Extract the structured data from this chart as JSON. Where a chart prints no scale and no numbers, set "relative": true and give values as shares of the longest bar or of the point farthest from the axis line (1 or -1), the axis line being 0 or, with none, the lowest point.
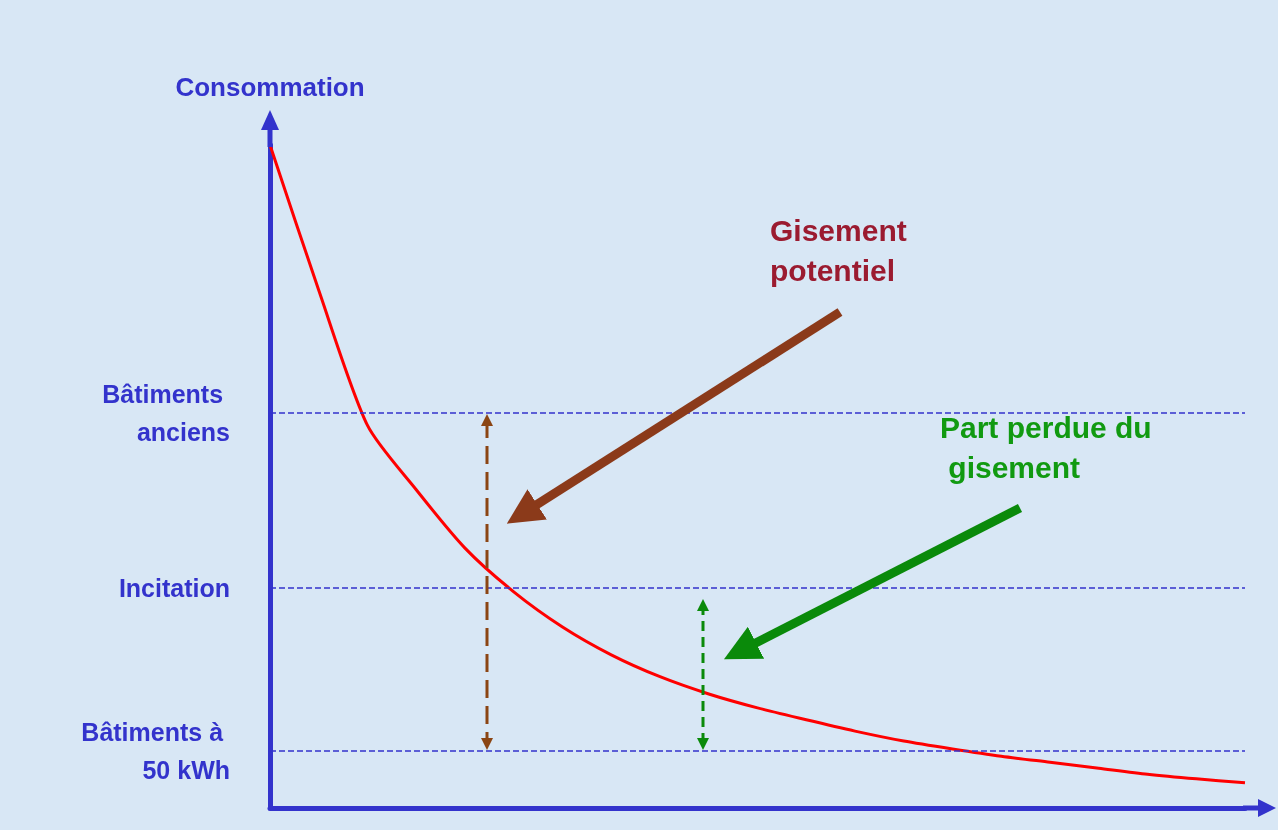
{
  "chart_data": {
    "type": "line",
    "relative": true,
    "ylabel": "Consommation",
    "marker": "none",
    "categories": [
      null,
      null,
      null,
      null,
      null,
      null,
      null,
      null,
      null,
      null,
      null,
      null,
      null,
      null,
      null,
      null,
      null,
      null,
      null,
      null,
      null
    ],
    "series": [
      {
        "color": "#ff0000",
        "values": [
          1.0,
          0.781,
          0.577,
          0.48,
          0.392,
          0.326,
          0.273,
          0.231,
          0.198,
          0.172,
          0.151,
          0.133,
          0.116,
          0.101,
          0.089,
          0.078,
          0.069,
          0.06,
          0.051,
          0.044,
          0.038
        ]
      }
    ],
    "ref_lines": [
      {
        "axis": "y",
        "value": 0.596,
        "label": "Bâtiments anciens",
        "color": "#3333cc",
        "line_style": "dashed"
      },
      {
        "axis": "y",
        "value": 0.332,
        "label": "Incitation",
        "color": "#3333cc",
        "line_style": "dashed"
      },
      {
        "axis": "y",
        "value": 0.086,
        "label": "Bâtiments à 50 kWh",
        "color": "#3333cc",
        "line_style": "dashed"
      }
    ],
    "annotations": [
      "Gisement potentiel",
      "Part perdue du gisement"
    ]
  }
}
